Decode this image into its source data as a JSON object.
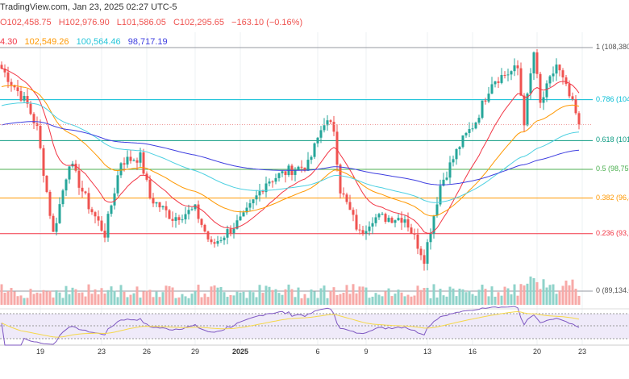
{
  "header": {
    "source": "TradingView.com, Jan 23, 2025 02:27 UTC-5",
    "open": "O102,458.75",
    "high": "H102,976.90",
    "low": "L101,586.05",
    "close": "C102,295.65",
    "change": "−163.10 (−0.16%)",
    "ma_values": [
      "4.30",
      "102,549.26",
      "100,564.46",
      "98,717.19"
    ]
  },
  "colors": {
    "up": "#26a69a",
    "down": "#ef5350",
    "ma1": "#f23645",
    "ma2": "#ff9800",
    "ma3": "#4dd0e1",
    "ma4": "#3f3fe0",
    "rsi": "#7e57c2",
    "rsi_ma": "#f5d84a"
  },
  "fib_levels": [
    {
      "ratio": 1,
      "label": "1 (108,380.",
      "price": 108380,
      "color": "#9598a1"
    },
    {
      "ratio": 0.786,
      "label": "0.786 (104,",
      "price": 104260,
      "color": "#00bcd4"
    },
    {
      "ratio": 0.618,
      "label": "0.618 (101,",
      "price": 101030,
      "color": "#089981"
    },
    {
      "ratio": 0.5,
      "label": "0.5 (98,757",
      "price": 98757,
      "color": "#4caf50"
    },
    {
      "ratio": 0.382,
      "label": "0.382 (96,4",
      "price": 96486,
      "color": "#ff9800"
    },
    {
      "ratio": 0.236,
      "label": "0.236 (93,6",
      "price": 93677,
      "color": "#f23645"
    },
    {
      "ratio": 0,
      "label": "0 (89,134.0",
      "price": 89134,
      "color": "#9598a1"
    }
  ],
  "price_range": [
    89134,
    108380
  ],
  "price_path": [
    [
      0,
      106723
    ],
    [
      8,
      103855
    ],
    [
      11,
      101943
    ],
    [
      16,
      93660
    ],
    [
      21,
      99394
    ],
    [
      27,
      95890
    ],
    [
      32,
      93660
    ],
    [
      37,
      99394
    ],
    [
      43,
      99713
    ],
    [
      46,
      96527
    ],
    [
      53,
      94933
    ],
    [
      60,
      95570
    ],
    [
      65,
      92700
    ],
    [
      75,
      94933
    ],
    [
      82,
      97800
    ],
    [
      90,
      98757
    ],
    [
      95,
      99075
    ],
    [
      100,
      102580
    ],
    [
      103,
      101943
    ],
    [
      105,
      97164
    ],
    [
      111,
      93660
    ],
    [
      115,
      94933
    ],
    [
      125,
      94933
    ],
    [
      131,
      91747
    ],
    [
      136,
      97483
    ],
    [
      142,
      100669
    ],
    [
      147,
      102580
    ],
    [
      152,
      105766
    ],
    [
      160,
      106723
    ],
    [
      162,
      102580
    ],
    [
      165,
      108000
    ],
    [
      167,
      103855
    ],
    [
      172,
      107040
    ],
    [
      177,
      103855
    ],
    [
      179,
      102295
    ]
  ],
  "x_axis": {
    "labels": [
      "19",
      "23",
      "26",
      "29",
      "2025",
      "6",
      "9",
      "13",
      "16",
      "20",
      "23"
    ],
    "candle_index": [
      12,
      31,
      45,
      60,
      74,
      98,
      113,
      132,
      146,
      166,
      180
    ]
  }
}
